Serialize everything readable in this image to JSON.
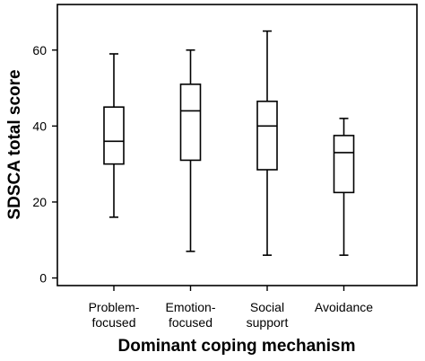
{
  "chart_data": {
    "type": "boxplot",
    "title": "",
    "xlabel": "Dominant coping mechanism",
    "ylabel": "SDSCA total score",
    "ylim": [
      -2,
      72
    ],
    "yticks": [
      0,
      20,
      40,
      60
    ],
    "grid": false,
    "categories": [
      {
        "lines": [
          "Problem-",
          "focused"
        ]
      },
      {
        "lines": [
          "Emotion-",
          "focused"
        ]
      },
      {
        "lines": [
          "Social",
          "support"
        ]
      },
      {
        "lines": [
          "Avoidance"
        ]
      }
    ],
    "series": [
      {
        "boxes": [
          {
            "min": 16,
            "q1": 30,
            "median": 36,
            "q3": 45,
            "max": 59
          },
          {
            "min": 7,
            "q1": 31,
            "median": 44,
            "q3": 51,
            "max": 60
          },
          {
            "min": 6,
            "q1": 28.5,
            "median": 40,
            "q3": 46.5,
            "max": 65
          },
          {
            "min": 6,
            "q1": 22.5,
            "median": 33,
            "q3": 37.5,
            "max": 42
          }
        ]
      }
    ]
  }
}
